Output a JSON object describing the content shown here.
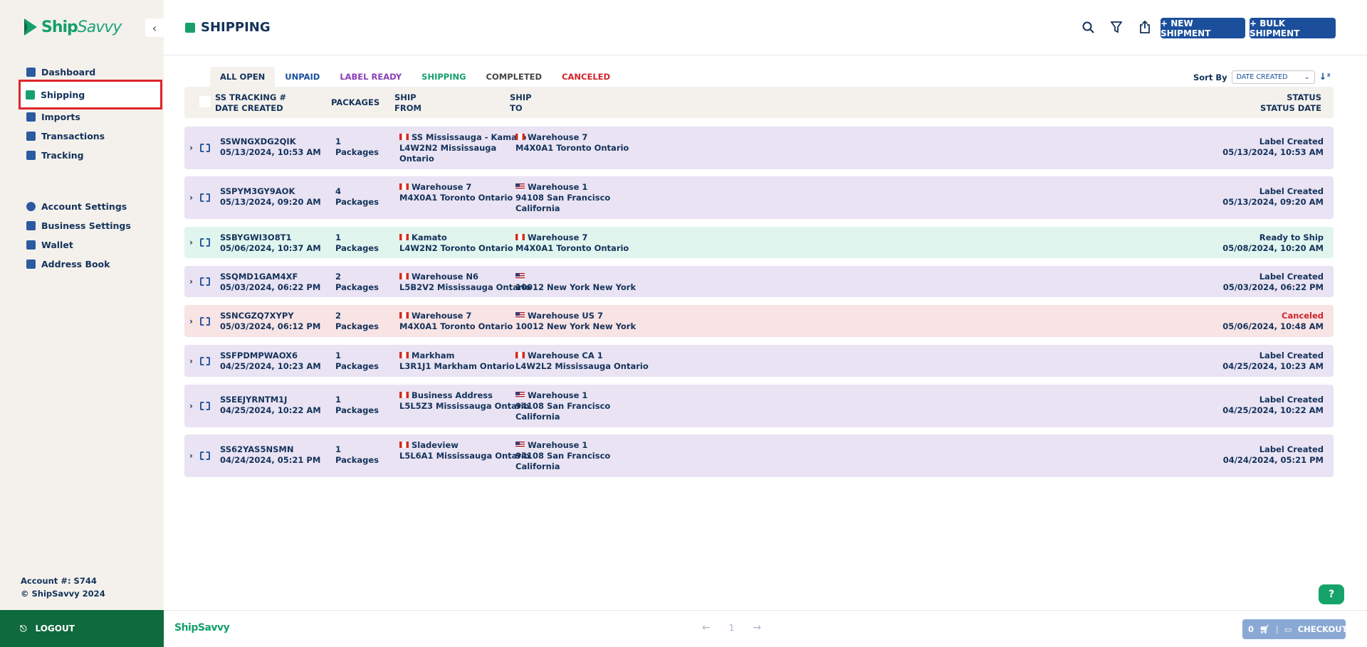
{
  "brand": {
    "name_ship": "Ship",
    "name_savvy": "Savvy",
    "footer_logo": "ShipSavvy",
    "green": "#17a06d",
    "blue": "#1b4f9c"
  },
  "sidebar": {
    "main_items": [
      {
        "label": "Dashboard",
        "icon": "home-icon"
      },
      {
        "label": "Shipping",
        "icon": "package-icon",
        "active": true
      },
      {
        "label": "Imports",
        "icon": "import-icon"
      },
      {
        "label": "Transactions",
        "icon": "document-icon"
      },
      {
        "label": "Tracking",
        "icon": "document-icon"
      }
    ],
    "settings_items": [
      {
        "label": "Account Settings",
        "icon": "user-circle-icon"
      },
      {
        "label": "Business Settings",
        "icon": "business-user-icon"
      },
      {
        "label": "Wallet",
        "icon": "wallet-icon"
      },
      {
        "label": "Address Book",
        "icon": "address-book-icon"
      }
    ],
    "account_number": "Account #: S744",
    "copyright": "© ShipSavvy 2024",
    "logout_label": "LOGOUT"
  },
  "header": {
    "title": "SHIPPING",
    "new_shipment_label": "+ NEW SHIPMENT",
    "bulk_shipment_label": "+ BULK SHIPMENT"
  },
  "tabs": [
    {
      "label": "ALL OPEN",
      "color": "#14325a"
    },
    {
      "label": "UNPAID",
      "color": "#1b4f9c"
    },
    {
      "label": "LABEL READY",
      "color": "#8b3fb8"
    },
    {
      "label": "SHIPPING",
      "color": "#17a06d"
    },
    {
      "label": "COMPLETED",
      "color": "#444444"
    },
    {
      "label": "CANCELED",
      "color": "#d0242b"
    }
  ],
  "sort": {
    "label": "Sort By",
    "value": "DATE CREATED"
  },
  "columns": {
    "tracking": "SS TRACKING #",
    "date_created": "DATE CREATED",
    "packages": "PACKAGES",
    "ship_from_1": "SHIP",
    "ship_from_2": "FROM",
    "ship_to_1": "SHIP",
    "ship_to_2": "TO",
    "status": "STATUS",
    "status_date": "STATUS DATE"
  },
  "rows": [
    {
      "tracking": "SSWNGXDG2QIK",
      "date": "05/13/2024, 10:53 AM",
      "count": "1",
      "packages_label": "Packages",
      "from_flag": "ca",
      "from_l1": "SS Mississauga - Kamato",
      "from_l2": "L4W2N2 Mississauga",
      "from_l3": "Ontario",
      "to_flag": "ca",
      "to_l1": "Warehouse 7",
      "to_l2": "M4X0A1 Toronto Ontario",
      "to_l3": "",
      "status": "Label Created",
      "status_date": "05/13/2024, 10:53 AM",
      "bg": "#e9e3f3",
      "status_color": "#14325a"
    },
    {
      "tracking": "SSPYM3GY9AOK",
      "date": "05/13/2024, 09:20 AM",
      "count": "4",
      "packages_label": "Packages",
      "from_flag": "ca",
      "from_l1": "Warehouse 7",
      "from_l2": "M4X0A1 Toronto Ontario",
      "from_l3": "",
      "to_flag": "us",
      "to_l1": "Warehouse 1",
      "to_l2": "94108 San Francisco",
      "to_l3": "California",
      "status": "Label Created",
      "status_date": "05/13/2024, 09:20 AM",
      "bg": "#e9e3f3",
      "status_color": "#14325a"
    },
    {
      "tracking": "SSBYGWI3O8T1",
      "date": "05/06/2024, 10:37 AM",
      "count": "1",
      "packages_label": "Packages",
      "from_flag": "ca",
      "from_l1": "Kamato",
      "from_l2": "L4W2N2 Toronto Ontario",
      "from_l3": "",
      "to_flag": "ca",
      "to_l1": "Warehouse 7",
      "to_l2": "M4X0A1 Toronto Ontario",
      "to_l3": "",
      "status": "Ready to Ship",
      "status_date": "05/08/2024, 10:20 AM",
      "bg": "#e0f5ee",
      "status_color": "#14325a"
    },
    {
      "tracking": "SSQMD1GAM4XF",
      "date": "05/03/2024, 06:22 PM",
      "count": "2",
      "packages_label": "Packages",
      "from_flag": "ca",
      "from_l1": "Warehouse N6",
      "from_l2": "L5B2V2 Mississauga Ontario",
      "from_l3": "",
      "to_flag": "us",
      "to_l1": "",
      "to_l2": "10012 New York New York",
      "to_l3": "",
      "status": "Label Created",
      "status_date": "05/03/2024, 06:22 PM",
      "bg": "#e9e3f3",
      "status_color": "#14325a"
    },
    {
      "tracking": "SSNCGZQ7XYPY",
      "date": "05/03/2024, 06:12 PM",
      "count": "2",
      "packages_label": "Packages",
      "from_flag": "ca",
      "from_l1": "Warehouse 7",
      "from_l2": "M4X0A1 Toronto Ontario",
      "from_l3": "",
      "to_flag": "us",
      "to_l1": "Warehouse US 7",
      "to_l2": "10012 New York New York",
      "to_l3": "",
      "status": "Canceled",
      "status_date": "05/06/2024, 10:48 AM",
      "bg": "#f8e3e5",
      "status_color": "#d0242b"
    },
    {
      "tracking": "SSFPDMPWAOX6",
      "date": "04/25/2024, 10:23 AM",
      "count": "1",
      "packages_label": "Packages",
      "from_flag": "ca",
      "from_l1": "Markham",
      "from_l2": "L3R1J1 Markham Ontario",
      "from_l3": "",
      "to_flag": "ca",
      "to_l1": "Warehouse CA 1",
      "to_l2": "L4W2L2 Mississauga Ontario",
      "to_l3": "",
      "status": "Label Created",
      "status_date": "04/25/2024, 10:23 AM",
      "bg": "#e9e3f3",
      "status_color": "#14325a"
    },
    {
      "tracking": "SSEEJYRNTM1J",
      "date": "04/25/2024, 10:22 AM",
      "count": "1",
      "packages_label": "Packages",
      "from_flag": "ca",
      "from_l1": "Business Address",
      "from_l2": "L5L5Z3 Mississauga Ontario",
      "from_l3": "",
      "to_flag": "us",
      "to_l1": "Warehouse 1",
      "to_l2": "94108 San Francisco",
      "to_l3": "California",
      "status": "Label Created",
      "status_date": "04/25/2024, 10:22 AM",
      "bg": "#e9e3f3",
      "status_color": "#14325a"
    },
    {
      "tracking": "SS62YAS5NSMN",
      "date": "04/24/2024, 05:21 PM",
      "count": "1",
      "packages_label": "Packages",
      "from_flag": "ca",
      "from_l1": "Sladeview",
      "from_l2": "L5L6A1 Mississauga Ontario",
      "from_l3": "",
      "to_flag": "us",
      "to_l1": "Warehouse 1",
      "to_l2": "94108 San Francisco",
      "to_l3": "California",
      "status": "Label Created",
      "status_date": "04/24/2024, 05:21 PM",
      "bg": "#e9e3f3",
      "status_color": "#14325a"
    }
  ],
  "pagination": {
    "current": "1"
  },
  "cart": {
    "count": "0",
    "checkout_label": "CHECKOUT"
  },
  "help": {
    "label": "?"
  }
}
